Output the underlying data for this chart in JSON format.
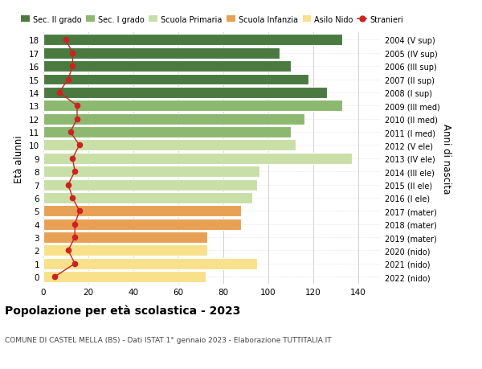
{
  "ages": [
    0,
    1,
    2,
    3,
    4,
    5,
    6,
    7,
    8,
    9,
    10,
    11,
    12,
    13,
    14,
    15,
    16,
    17,
    18
  ],
  "years": [
    "2022 (nido)",
    "2021 (nido)",
    "2020 (nido)",
    "2019 (mater)",
    "2018 (mater)",
    "2017 (mater)",
    "2016 (I ele)",
    "2015 (II ele)",
    "2014 (III ele)",
    "2013 (IV ele)",
    "2012 (V ele)",
    "2011 (I med)",
    "2010 (II med)",
    "2009 (III med)",
    "2008 (I sup)",
    "2007 (II sup)",
    "2006 (III sup)",
    "2005 (IV sup)",
    "2004 (V sup)"
  ],
  "bar_values": [
    72,
    95,
    73,
    73,
    88,
    88,
    93,
    95,
    96,
    137,
    112,
    110,
    116,
    133,
    126,
    118,
    110,
    105,
    133
  ],
  "stranieri": [
    5,
    14,
    11,
    14,
    14,
    16,
    13,
    11,
    14,
    13,
    16,
    12,
    15,
    15,
    7,
    11,
    13,
    13,
    10
  ],
  "bar_colors": [
    "#f9e08a",
    "#f9e08a",
    "#f9e08a",
    "#e8a055",
    "#e8a055",
    "#e8a055",
    "#c9dfa8",
    "#c9dfa8",
    "#c9dfa8",
    "#c9dfa8",
    "#c9dfa8",
    "#8db870",
    "#8db870",
    "#8db870",
    "#4a7a40",
    "#4a7a40",
    "#4a7a40",
    "#4a7a40",
    "#4a7a40"
  ],
  "legend_labels": [
    "Sec. II grado",
    "Sec. I grado",
    "Scuola Primaria",
    "Scuola Infanzia",
    "Asilo Nido",
    "Stranieri"
  ],
  "legend_colors": [
    "#4a7a40",
    "#8db870",
    "#c9dfa8",
    "#e8a055",
    "#f9e08a",
    "#cc2222"
  ],
  "title": "Popolazione per età scolastica - 2023",
  "subtitle": "COMUNE DI CASTEL MELLA (BS) - Dati ISTAT 1° gennaio 2023 - Elaborazione TUTTITALIA.IT",
  "ylabel_left": "Età alunni",
  "ylabel_right": "Anni di nascita",
  "xlim": [
    0,
    150
  ],
  "xticks": [
    0,
    20,
    40,
    60,
    80,
    100,
    120,
    140
  ],
  "bar_height": 0.85,
  "stranieri_color": "#cc2222",
  "bg_color": "#ffffff",
  "grid_color": "#cccccc"
}
